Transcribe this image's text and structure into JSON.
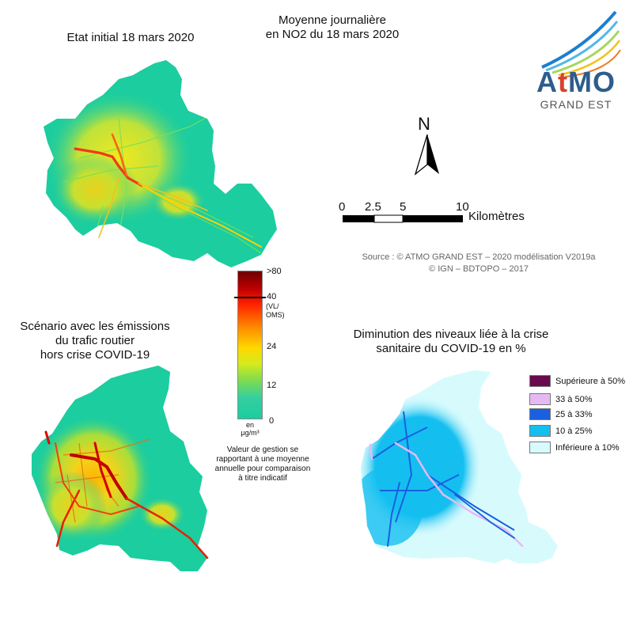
{
  "main_title": [
    "Moyenne journalière",
    "en NO2 du 18 mars 2020"
  ],
  "map_initial": {
    "title": "Etat initial 18 mars 2020"
  },
  "map_scenario": {
    "title": [
      "Scénario avec les émissions",
      "du trafic routier",
      "hors crise COVID-19"
    ]
  },
  "map_diminution": {
    "title": [
      "Diminution des niveaux liée à la crise",
      "sanitaire du COVID-19 en %"
    ],
    "legend": [
      {
        "label": "Supérieure à 50%",
        "color": "#6b0a4c"
      },
      {
        "label": "33 à 50%",
        "color": "#e7b9f2"
      },
      {
        "label": "25 à 33%",
        "color": "#1a5fe0"
      },
      {
        "label": "10 à 25%",
        "color": "#14bff0"
      },
      {
        "label": "Inférieure à 10%",
        "color": "#d7fbfd"
      }
    ]
  },
  "colorbar": {
    "ticks": [
      ">80",
      "40",
      "24",
      "12",
      "0"
    ],
    "threshold_note": [
      "(VL/",
      "OMS)"
    ],
    "unit": [
      "en",
      "µg/m³"
    ],
    "colors": [
      "#6e0000",
      "#c00000",
      "#ff2000",
      "#ff8a00",
      "#ffd800",
      "#d4ea1e",
      "#7edc4e",
      "#34cfa0",
      "#1ccd9f"
    ]
  },
  "gestion_note": [
    "Valeur de gestion se",
    "rapportant à une moyenne",
    "annuelle pour comparaison",
    "à titre indicatif"
  ],
  "north": {
    "label": "N"
  },
  "scale_bar": {
    "ticks": [
      "0",
      "2.5",
      "5",
      "10"
    ],
    "unit": "Kilomètres"
  },
  "source": [
    "Source :  © ATMO GRAND EST – 2020 modélisation V2019a",
    "© IGN – BDTOPO – 2017"
  ],
  "logo": {
    "name_a": "A",
    "name_t": "t",
    "name_mo": "MO",
    "region": "GRAND EST"
  }
}
